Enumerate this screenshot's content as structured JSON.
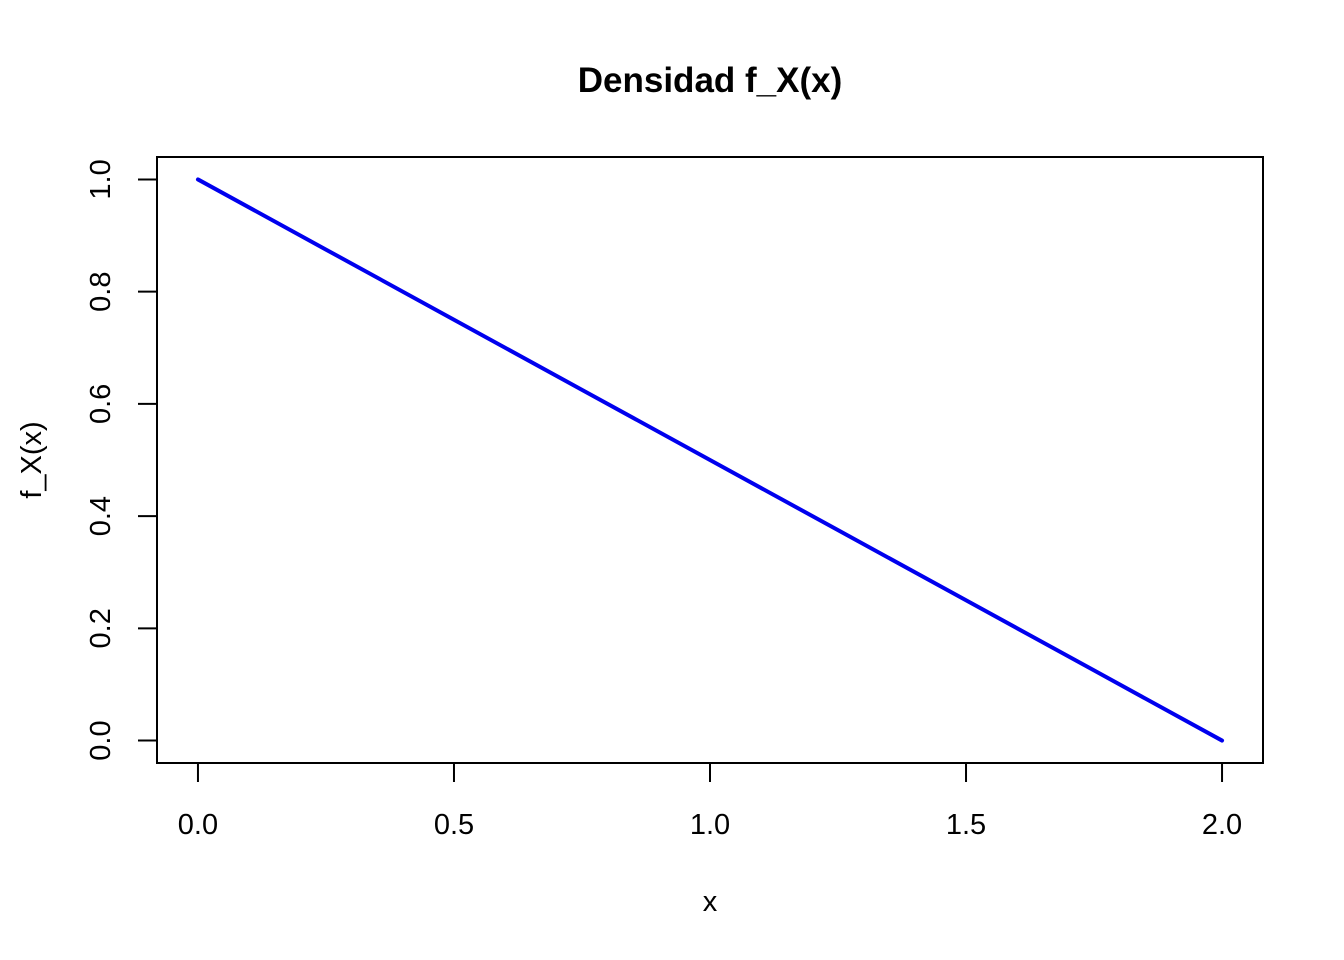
{
  "chart_data": {
    "type": "line",
    "title": "Densidad f_X(x)",
    "xlabel": "x",
    "ylabel": "f_X(x)",
    "xlim": [
      -0.08,
      2.08
    ],
    "ylim": [
      -0.04,
      1.04
    ],
    "x_ticks": [
      0.0,
      0.5,
      1.0,
      1.5,
      2.0
    ],
    "x_tick_labels": [
      "0.0",
      "0.5",
      "1.0",
      "1.5",
      "2.0"
    ],
    "y_ticks": [
      0.0,
      0.2,
      0.4,
      0.6,
      0.8,
      1.0
    ],
    "y_tick_labels": [
      "0.0",
      "0.2",
      "0.4",
      "0.6",
      "0.8",
      "1.0"
    ],
    "grid": false,
    "series": [
      {
        "color": "#0000ee",
        "x": [
          0.0,
          0.25,
          0.5,
          0.75,
          1.0,
          1.25,
          1.5,
          1.75,
          2.0
        ],
        "y": [
          1.0,
          0.875,
          0.75,
          0.625,
          0.5,
          0.375,
          0.25,
          0.125,
          0.0
        ]
      }
    ]
  }
}
